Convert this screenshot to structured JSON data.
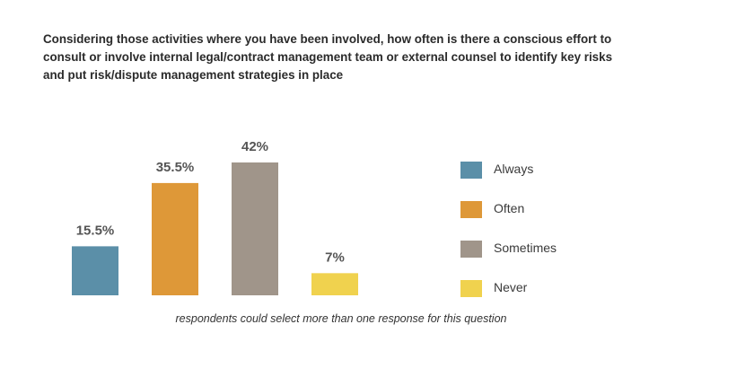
{
  "title_lines": [
    "Considering those activities where you have been involved, how often is there a conscious effort to",
    "consult or involve internal legal/contract management team or external counsel to identify key risks",
    "and put risk/dispute management strategies in place"
  ],
  "footnote": "respondents could select more than one response for this question",
  "chart_data": {
    "type": "bar",
    "title": "Considering those activities where you have been involved, how often is there a conscious effort to consult or involve internal legal/contract management team or external counsel to identify key risks and put risk/dispute management strategies in place",
    "categories": [
      "Always",
      "Often",
      "Sometimes",
      "Never"
    ],
    "values": [
      15.5,
      35.5,
      42,
      7
    ],
    "value_labels": [
      "15.5%",
      "35.5%",
      "42%",
      "7%"
    ],
    "colors": [
      "#5b8fa8",
      "#de9838",
      "#a0958a",
      "#f0d24e"
    ],
    "xlabel": "",
    "ylabel": "",
    "ylim": [
      0,
      42
    ],
    "grid": false,
    "legend": "right"
  }
}
